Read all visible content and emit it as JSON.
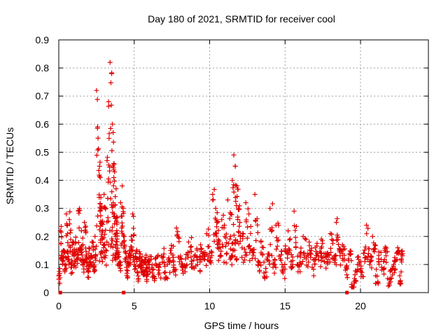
{
  "chart_data": {
    "type": "scatter",
    "title": "Day 180 of 2021, SRMTID for receiver cool",
    "xlabel": "GPS time / hours",
    "ylabel": "SRMTID / TECUs",
    "xlim": [
      0,
      24.5
    ],
    "ylim": [
      0,
      0.9
    ],
    "xticks": [
      0,
      5,
      10,
      15,
      20
    ],
    "xtick_labels": [
      "0",
      "5",
      "10",
      "15",
      "20"
    ],
    "yticks": [
      0,
      0.1,
      0.2,
      0.3,
      0.4,
      0.5,
      0.6,
      0.7,
      0.8,
      0.9
    ],
    "ytick_labels": [
      "0",
      "0.1",
      "0.2",
      "0.3",
      "0.4",
      "0.5",
      "0.6",
      "0.7",
      "0.8",
      "0.9"
    ],
    "grid": true,
    "marker": "+",
    "color": "#e00000",
    "series": [
      {
        "name": "SRMTID",
        "x": [
          0.0,
          0.1,
          0.2,
          0.3,
          0.4,
          0.5,
          0.6,
          0.7,
          0.8,
          0.9,
          1.0,
          1.1,
          1.2,
          1.3,
          1.4,
          1.5,
          1.6,
          1.7,
          1.8,
          1.9,
          2.0,
          2.1,
          2.2,
          2.3,
          2.4,
          2.5,
          2.6,
          2.7,
          2.75,
          2.8,
          2.85,
          2.9,
          3.0,
          3.1,
          3.2,
          3.3,
          3.4,
          3.5,
          3.55,
          3.6,
          3.65,
          3.7,
          3.75,
          3.8,
          3.85,
          3.9,
          4.0,
          4.1,
          4.2,
          4.3,
          4.4,
          4.5,
          4.6,
          4.7,
          4.8,
          4.9,
          5.0,
          5.1,
          5.2,
          5.3,
          5.4,
          5.5,
          5.6,
          5.7,
          5.8,
          5.9,
          6.0,
          6.2,
          6.4,
          6.6,
          6.8,
          7.0,
          7.2,
          7.4,
          7.6,
          7.8,
          8.0,
          8.2,
          8.4,
          8.6,
          8.8,
          9.0,
          9.2,
          9.4,
          9.6,
          9.8,
          10.0,
          10.2,
          10.4,
          10.5,
          10.6,
          10.8,
          11.0,
          11.2,
          11.4,
          11.5,
          11.6,
          11.7,
          11.8,
          11.9,
          12.0,
          12.2,
          12.4,
          12.6,
          12.8,
          13.0,
          13.2,
          13.4,
          13.6,
          13.8,
          14.0,
          14.2,
          14.4,
          14.6,
          14.8,
          15.0,
          15.2,
          15.4,
          15.6,
          15.8,
          16.0,
          16.2,
          16.4,
          16.6,
          16.8,
          17.0,
          17.2,
          17.4,
          17.6,
          17.8,
          18.0,
          18.2,
          18.4,
          18.6,
          18.8,
          19.0,
          19.2,
          19.4,
          19.6,
          19.8,
          20.0,
          20.2,
          20.4,
          20.6,
          20.8,
          21.0,
          21.2,
          21.4,
          21.6,
          21.8,
          22.0,
          22.2,
          22.4,
          22.6,
          22.7
        ],
        "y": [
          0.06,
          0.22,
          0.12,
          0.15,
          0.1,
          0.28,
          0.14,
          0.26,
          0.09,
          0.17,
          0.13,
          0.18,
          0.12,
          0.29,
          0.16,
          0.22,
          0.1,
          0.25,
          0.12,
          0.08,
          0.14,
          0.11,
          0.18,
          0.09,
          0.2,
          0.72,
          0.55,
          0.45,
          0.41,
          0.3,
          0.25,
          0.22,
          0.35,
          0.3,
          0.47,
          0.68,
          0.82,
          0.78,
          0.6,
          0.57,
          0.46,
          0.43,
          0.2,
          0.37,
          0.25,
          0.14,
          0.1,
          0.32,
          0.38,
          0.2,
          0.12,
          0.08,
          0.11,
          0.15,
          0.2,
          0.28,
          0.1,
          0.14,
          0.07,
          0.12,
          0.09,
          0.1,
          0.08,
          0.11,
          0.06,
          0.09,
          0.1,
          0.07,
          0.12,
          0.08,
          0.13,
          0.07,
          0.1,
          0.15,
          0.09,
          0.23,
          0.11,
          0.08,
          0.12,
          0.18,
          0.09,
          0.13,
          0.1,
          0.17,
          0.12,
          0.21,
          0.14,
          0.35,
          0.3,
          0.25,
          0.18,
          0.26,
          0.2,
          0.33,
          0.28,
          0.4,
          0.49,
          0.45,
          0.38,
          0.3,
          0.25,
          0.2,
          0.32,
          0.28,
          0.15,
          0.35,
          0.1,
          0.18,
          0.07,
          0.12,
          0.3,
          0.09,
          0.24,
          0.13,
          0.08,
          0.15,
          0.22,
          0.11,
          0.29,
          0.1,
          0.14,
          0.2,
          0.12,
          0.18,
          0.09,
          0.16,
          0.13,
          0.19,
          0.11,
          0.14,
          0.21,
          0.12,
          0.25,
          0.15,
          0.17,
          0.08,
          0.12,
          0.02,
          0.05,
          0.1,
          0.08,
          0.14,
          0.24,
          0.11,
          0.2,
          0.06,
          0.12,
          0.09,
          0.15,
          0.05,
          0.08,
          0.1,
          0.14,
          0.06,
          0.12
        ],
        "zero_marks_x": [
          0.1,
          4.3,
          19.1
        ]
      }
    ]
  }
}
